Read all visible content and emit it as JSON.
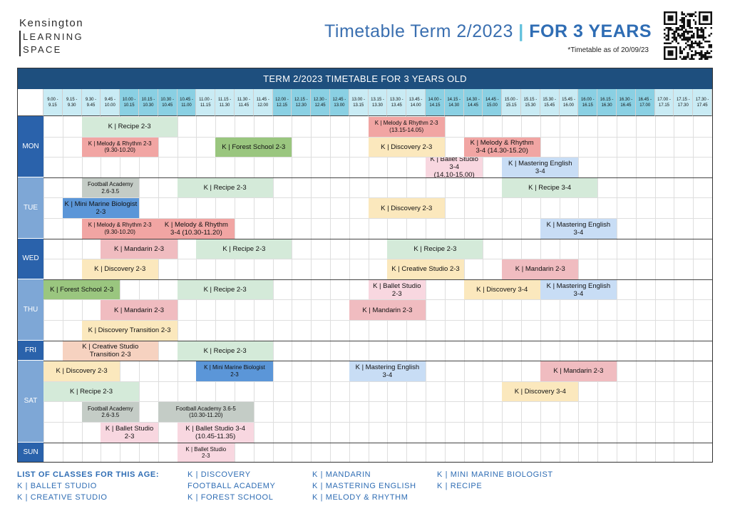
{
  "brand": {
    "line1": "Kensington",
    "line2": "LEARNING",
    "line3": "SPACE"
  },
  "header": {
    "title_main": "Timetable Term 2/2023",
    "title_sep": "|",
    "title_bold": "FOR 3 YEARS",
    "as_of": "*Timetable as of 20/09/23"
  },
  "grid_title": "TERM 2/2023 TIMETABLE FOR 3 YEARS OLD",
  "time_slots": [
    [
      "9.00 -",
      "9.15"
    ],
    [
      "9.15 -",
      "9.30"
    ],
    [
      "9.30 -",
      "9.45"
    ],
    [
      "9.45 -",
      "10.00"
    ],
    [
      "10.00 -",
      "10.15"
    ],
    [
      "10.15 -",
      "10.30"
    ],
    [
      "10.30 -",
      "10.45"
    ],
    [
      "10.45 -",
      "11.00"
    ],
    [
      "11.00 -",
      "11.15"
    ],
    [
      "11.15 -",
      "11.30"
    ],
    [
      "11.30 -",
      "11.45"
    ],
    [
      "11.45 -",
      "12.00"
    ],
    [
      "12.00 -",
      "12.15"
    ],
    [
      "12.15 -",
      "12.30"
    ],
    [
      "12.30 -",
      "12.45"
    ],
    [
      "12.45 -",
      "13.00"
    ],
    [
      "13.00 -",
      "13.15"
    ],
    [
      "13.15 -",
      "13.30"
    ],
    [
      "13.30 -",
      "13.45"
    ],
    [
      "13.45 -",
      "14.00"
    ],
    [
      "14.00 -",
      "14.15"
    ],
    [
      "14.15 -",
      "14.30"
    ],
    [
      "14.30 -",
      "14.45"
    ],
    [
      "14.45 -",
      "15.00"
    ],
    [
      "15.00 -",
      "15.15"
    ],
    [
      "15.15 -",
      "15.30"
    ],
    [
      "15.30 -",
      "15.45"
    ],
    [
      "15.45 -",
      "16.00"
    ],
    [
      "16.00 -",
      "16.15"
    ],
    [
      "16.15 -",
      "16.30"
    ],
    [
      "16.30 -",
      "16.45"
    ],
    [
      "16.45 -",
      "17.00"
    ],
    [
      "17.00 -",
      "17.15"
    ],
    [
      "17.15 -",
      "17.30"
    ],
    [
      "17.30 -",
      "17.45"
    ]
  ],
  "days": [
    {
      "name": "MON",
      "rows": 3,
      "shade": "d"
    },
    {
      "name": "TUE",
      "rows": 3,
      "shade": "l"
    },
    {
      "name": "WED",
      "rows": 2,
      "shade": "d"
    },
    {
      "name": "THU",
      "rows": 3,
      "shade": "l"
    },
    {
      "name": "FRI",
      "rows": 1,
      "shade": "d"
    },
    {
      "name": "SAT",
      "rows": 4,
      "shade": "l"
    },
    {
      "name": "SUN",
      "rows": 1,
      "shade": "d"
    }
  ],
  "classes": [
    {
      "row": 0,
      "start": 2,
      "span": 5,
      "c": "recipe",
      "t": [
        "K | Recipe 2-3"
      ]
    },
    {
      "row": 0,
      "start": 17,
      "span": 4,
      "c": "melody",
      "s": 1,
      "t": [
        "K | Melody & Rhythm 2-3",
        "(13.15-14.05)"
      ]
    },
    {
      "row": 1,
      "start": 2,
      "span": 4,
      "c": "melody",
      "s": 1,
      "t": [
        "K | Melody & Rhythm 2-3",
        "(9.30-10.20)"
      ]
    },
    {
      "row": 1,
      "start": 9,
      "span": 4,
      "c": "forest",
      "t": [
        "K | Forest School 2-3"
      ]
    },
    {
      "row": 1,
      "start": 17,
      "span": 4,
      "c": "disc",
      "t": [
        "K | Discovery 2-3"
      ]
    },
    {
      "row": 1,
      "start": 22,
      "span": 4,
      "c": "melody",
      "t": [
        "K | Melody & Rhythm",
        "3-4 (14.30-15.20)"
      ]
    },
    {
      "row": 2,
      "start": 20,
      "span": 3,
      "c": "ballet",
      "t": [
        "K | Ballet Studio 3-4",
        "(14.10-15.00)"
      ]
    },
    {
      "row": 2,
      "start": 24,
      "span": 4,
      "c": "eng",
      "t": [
        "K | Mastering English",
        "3-4"
      ]
    },
    {
      "row": 3,
      "start": 2,
      "span": 3,
      "c": "foot",
      "s": 1,
      "t": [
        "Football Academy",
        "2.6-3.5"
      ]
    },
    {
      "row": 3,
      "start": 7,
      "span": 5,
      "c": "recipe",
      "t": [
        "K | Recipe 2-3"
      ]
    },
    {
      "row": 3,
      "start": 24,
      "span": 5,
      "c": "recipe",
      "t": [
        "K | Recipe 3-4"
      ]
    },
    {
      "row": 4,
      "start": 1,
      "span": 4,
      "c": "marine",
      "t": [
        "K | Mini Marine Biologist",
        "2-3"
      ]
    },
    {
      "row": 4,
      "start": 17,
      "span": 4,
      "c": "disc",
      "t": [
        "K | Discovery 2-3"
      ]
    },
    {
      "row": 5,
      "start": 2,
      "span": 4,
      "c": "melody",
      "s": 1,
      "t": [
        "K | Melody & Rhythm 2-3",
        "(9.30-10.20)"
      ]
    },
    {
      "row": 5,
      "start": 6,
      "span": 4,
      "c": "melody",
      "t": [
        "K | Melody & Rhythm",
        "3-4 (10.30-11.20)"
      ]
    },
    {
      "row": 5,
      "start": 26,
      "span": 4,
      "c": "eng",
      "t": [
        "K | Mastering English",
        "3-4"
      ]
    },
    {
      "row": 6,
      "start": 3,
      "span": 4,
      "c": "mand",
      "t": [
        "K | Mandarin 2-3"
      ]
    },
    {
      "row": 6,
      "start": 8,
      "span": 5,
      "c": "recipe",
      "t": [
        "K | Recipe 2-3"
      ]
    },
    {
      "row": 6,
      "start": 18,
      "span": 5,
      "c": "recipe",
      "t": [
        "K | Recipe 2-3"
      ]
    },
    {
      "row": 7,
      "start": 2,
      "span": 4,
      "c": "disc",
      "t": [
        "K | Discovery 2-3"
      ]
    },
    {
      "row": 7,
      "start": 18,
      "span": 4,
      "c": "disc",
      "t": [
        "K | Creative Studio 2-3"
      ]
    },
    {
      "row": 7,
      "start": 24,
      "span": 4,
      "c": "mand",
      "t": [
        "K | Mandarin 2-3"
      ]
    },
    {
      "row": 8,
      "start": 0,
      "span": 4,
      "c": "forest",
      "t": [
        "K | Forest School 2-3"
      ]
    },
    {
      "row": 8,
      "start": 7,
      "span": 5,
      "c": "recipe",
      "t": [
        "K | Recipe 2-3"
      ]
    },
    {
      "row": 8,
      "start": 17,
      "span": 3,
      "c": "ballet",
      "t": [
        "K | Ballet Studio",
        "2-3"
      ]
    },
    {
      "row": 8,
      "start": 22,
      "span": 4,
      "c": "disc",
      "t": [
        "K | Discovery 3-4"
      ]
    },
    {
      "row": 8,
      "start": 26,
      "span": 4,
      "c": "eng",
      "t": [
        "K | Mastering English",
        "3-4"
      ]
    },
    {
      "row": 9,
      "start": 3,
      "span": 4,
      "c": "mand",
      "t": [
        "K | Mandarin 2-3"
      ]
    },
    {
      "row": 9,
      "start": 16,
      "span": 4,
      "c": "mand",
      "t": [
        "K | Mandarin 2-3"
      ]
    },
    {
      "row": 10,
      "start": 2,
      "span": 5,
      "c": "disc",
      "t": [
        "K | Discovery Transition 2-3"
      ]
    },
    {
      "row": 11,
      "start": 1,
      "span": 5,
      "c": "creative",
      "t": [
        "K | Creative Studio",
        "Transition 2-3"
      ]
    },
    {
      "row": 11,
      "start": 7,
      "span": 5,
      "c": "recipe",
      "t": [
        "K | Recipe 2-3"
      ]
    },
    {
      "row": 12,
      "start": 0,
      "span": 4,
      "c": "disc",
      "t": [
        "K | Discovery 2-3"
      ]
    },
    {
      "row": 12,
      "start": 8,
      "span": 4,
      "c": "marine",
      "s": 1,
      "t": [
        "K | Mini Marine Biologist",
        "2-3"
      ]
    },
    {
      "row": 12,
      "start": 16,
      "span": 4,
      "c": "eng",
      "t": [
        "K | Mastering English",
        "3-4"
      ]
    },
    {
      "row": 12,
      "start": 26,
      "span": 4,
      "c": "mand",
      "t": [
        "K | Mandarin 2-3"
      ]
    },
    {
      "row": 13,
      "start": 0,
      "span": 5,
      "c": "recipe",
      "t": [
        "K | Recipe 2-3"
      ]
    },
    {
      "row": 13,
      "start": 24,
      "span": 4,
      "c": "disc",
      "t": [
        "K | Discovery 3-4"
      ]
    },
    {
      "row": 14,
      "start": 2,
      "span": 3,
      "c": "foot",
      "s": 1,
      "t": [
        "Football Academy",
        "2.6-3.5"
      ]
    },
    {
      "row": 14,
      "start": 6,
      "span": 5,
      "c": "foot",
      "s": 1,
      "t": [
        "Football Academy 3.6-5",
        "(10.30-11.20)"
      ]
    },
    {
      "row": 15,
      "start": 3,
      "span": 3,
      "c": "ballet",
      "t": [
        "K | Ballet Studio",
        "2-3"
      ]
    },
    {
      "row": 15,
      "start": 7,
      "span": 4,
      "c": "ballet",
      "t": [
        "K | Ballet Studio 3-4",
        "(10.45-11.35)"
      ]
    },
    {
      "row": 16,
      "start": 7,
      "span": 3,
      "c": "ballet",
      "s": 1,
      "t": [
        "K | Ballet Studio",
        "2-3"
      ]
    }
  ],
  "legend": {
    "heading": "LIST OF CLASSES FOR THIS AGE:",
    "items": [
      "K | BALLET STUDIO",
      "K | CREATIVE STUDIO",
      "K | DISCOVERY",
      "FOOTBALL ACADEMY",
      "K | FOREST SCHOOL",
      "K | MANDARIN",
      "K | MASTERING ENGLISH",
      "K | MELODY & RHYTHM",
      "K | MINI MARINE BIOLOGIST",
      "K | RECIPE"
    ]
  }
}
